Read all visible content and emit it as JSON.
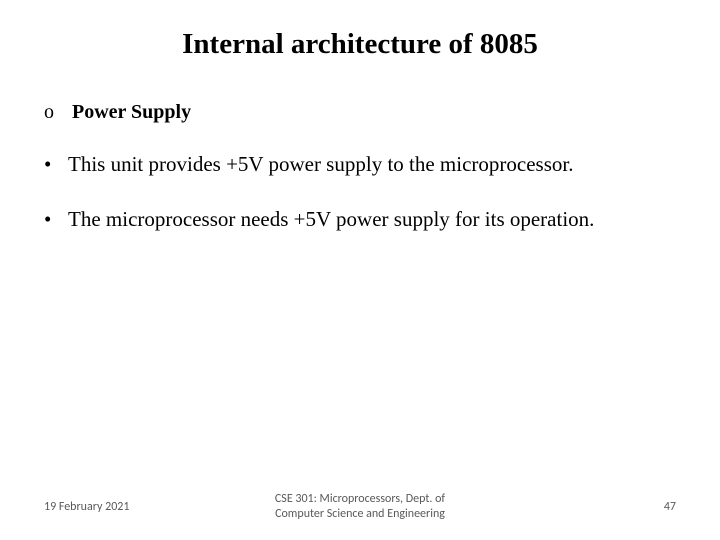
{
  "title": {
    "text": "Internal architecture of 8085",
    "fontsize": 29
  },
  "subhead": {
    "marker": "o",
    "text": "Power Supply",
    "fontsize": 20
  },
  "bullets": [
    {
      "marker": "•",
      "text": "This unit provides +5V power supply to the microprocessor."
    },
    {
      "marker": "•",
      "text": "The microprocessor needs +5V power supply for its operation."
    }
  ],
  "bullet_fontsize": 21,
  "footer": {
    "date": "19 February 2021",
    "center_line1": "CSE 301: Microprocessors, Dept. of",
    "center_line2": "Computer Science and Engineering",
    "page": "47",
    "fontsize": 12,
    "color": "#595959"
  },
  "colors": {
    "background": "#ffffff",
    "text": "#000000"
  }
}
